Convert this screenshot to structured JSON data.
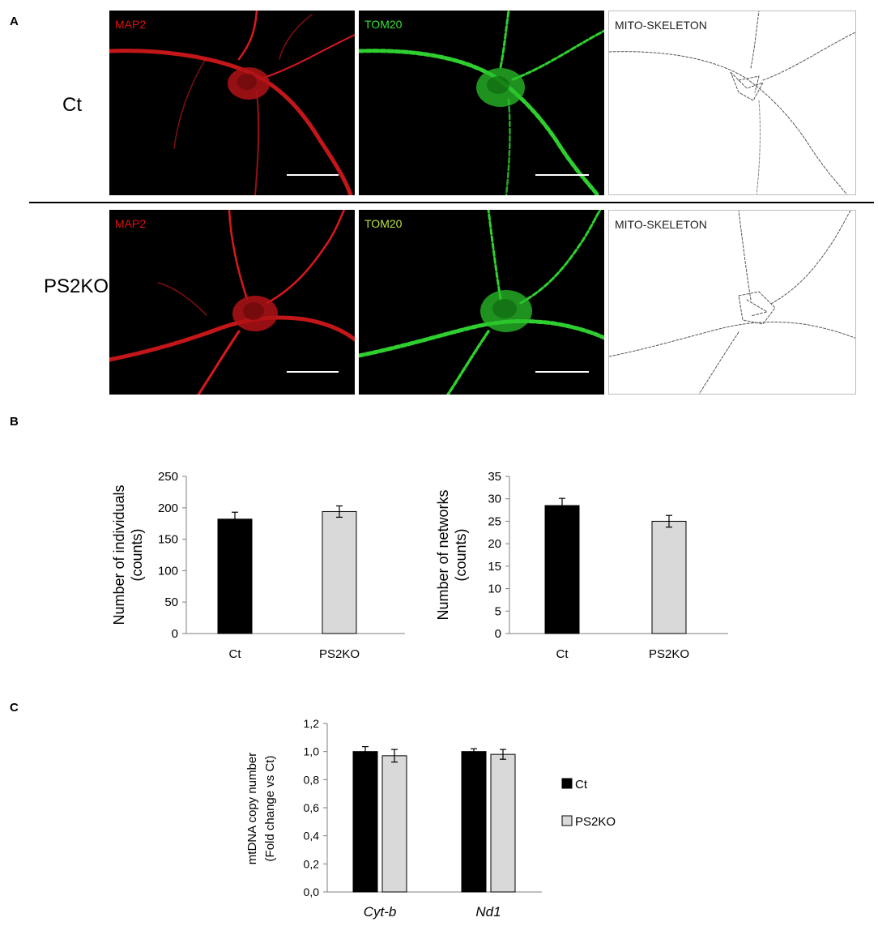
{
  "figure": {
    "panel_a": {
      "letter": "A",
      "rows": [
        {
          "label": "Ct",
          "images": [
            {
              "channel": "MAP2",
              "channel_color": "#e01010",
              "kind": "MAP2 immunostaining of a control neuron"
            },
            {
              "channel": "TOM20",
              "channel_color": "#3adf3a",
              "kind": "TOM20 immunostaining of a control neuron"
            },
            {
              "channel": "MITO-SKELETON",
              "channel_color": "#222222",
              "kind": "mitochondrial skeleton of a control neuron"
            }
          ]
        },
        {
          "label": "PS2KO",
          "images": [
            {
              "channel": "MAP2",
              "channel_color": "#e01010",
              "kind": "MAP2 immunostaining of a PS2KO neuron"
            },
            {
              "channel": "TOM20",
              "channel_color": "#b8e040",
              "kind": "TOM20 immunostaining of a PS2KO neuron"
            },
            {
              "channel": "MITO-SKELETON",
              "channel_color": "#222222",
              "kind": "mitochondrial skeleton of a PS2KO neuron"
            }
          ]
        }
      ]
    },
    "panel_b": {
      "letter": "B"
    },
    "panel_c": {
      "letter": "C"
    }
  },
  "chart_data": [
    {
      "id": "individuals",
      "type": "bar",
      "categories": [
        "Ct",
        "PS2KO"
      ],
      "values": [
        182,
        194
      ],
      "errors": [
        11,
        9
      ],
      "colors": [
        "#000000",
        "#d9d9d9"
      ],
      "ylabel_lines": [
        "Number of individuals",
        "(counts)"
      ],
      "ylim": [
        0,
        250
      ],
      "yticks": [
        0,
        50,
        100,
        150,
        200,
        250
      ],
      "ytick_labels": [
        "0",
        "50",
        "100",
        "150",
        "200",
        "250"
      ],
      "grid": false
    },
    {
      "id": "networks",
      "type": "bar",
      "categories": [
        "Ct",
        "PS2KO"
      ],
      "values": [
        28.5,
        25.0
      ],
      "errors": [
        1.6,
        1.3
      ],
      "colors": [
        "#000000",
        "#d9d9d9"
      ],
      "ylabel_lines": [
        "Number of networks",
        "(counts)"
      ],
      "ylim": [
        0,
        35
      ],
      "yticks": [
        0,
        5,
        10,
        15,
        20,
        25,
        30,
        35
      ],
      "ytick_labels": [
        "0",
        "5",
        "10",
        "15",
        "20",
        "25",
        "30",
        "35"
      ],
      "grid": false
    },
    {
      "id": "mtdna",
      "type": "bar",
      "categories": [
        "Cyt-b",
        "Nd1"
      ],
      "series": [
        {
          "name": "Ct",
          "values": [
            1.0,
            1.0
          ],
          "errors": [
            0.035,
            0.02
          ],
          "color": "#000000"
        },
        {
          "name": "PS2KO",
          "values": [
            0.97,
            0.98
          ],
          "errors": [
            0.045,
            0.035
          ],
          "color": "#d9d9d9"
        }
      ],
      "ylabel_lines": [
        "mtDNA copy number",
        "(Fold change vs Ct)"
      ],
      "ylim": [
        0,
        1.2
      ],
      "yticks": [
        0,
        0.2,
        0.4,
        0.6,
        0.8,
        1.0,
        1.2
      ],
      "ytick_labels": [
        "0,0",
        "0,2",
        "0,4",
        "0,6",
        "0,8",
        "1,0",
        "1,2"
      ],
      "legend": "right",
      "grid": false
    }
  ]
}
